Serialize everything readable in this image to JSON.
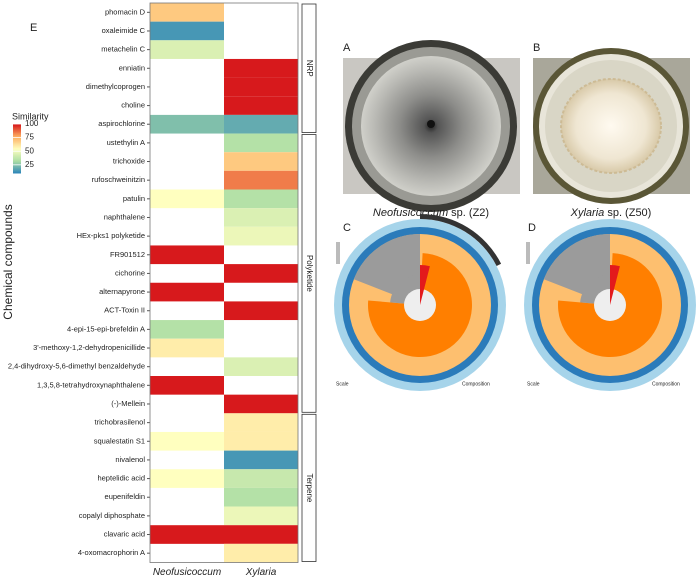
{
  "panel_labels": {
    "a": "A",
    "b": "B",
    "c": "C",
    "d": "D",
    "e": "E"
  },
  "photo_captions": {
    "a": {
      "genus": "Neofusicoccum",
      "rest": "sp. (Z2)"
    },
    "b": {
      "genus": "Xylaria",
      "rest": "sp. (Z50)"
    }
  },
  "snail_legend": {
    "scale": "Scale",
    "composition": "Composition"
  },
  "chart_data": {
    "type": "heatmap",
    "ylabel": "Chemical compounds",
    "categories": [
      "phomacin D",
      "oxaleimide C",
      "metachelin C",
      "enniatin",
      "dimethylcoprogen",
      "choline",
      "aspirochlorine",
      "ustethylin A",
      "trichoxide",
      "rufoschweinitzin",
      "patulin",
      "naphthalene",
      "HEx-pks1 polyketide",
      "FR901512",
      "cichorine",
      "alternapyrone",
      "ACT-Toxin II",
      "4-epi-15-epi-brefeldin A",
      "3'-methoxy-1,2-dehydropenicillide",
      "2,4-dihydroxy-5,6-dimethyl benzaldehyde",
      "1,3,5,8-tetrahydroxynaphthalene",
      "(-)-Mellein",
      "trichobrasilenol",
      "squalestatin S1",
      "nivalenol",
      "heptelidic acid",
      "eupenifeldin",
      "copalyl diphosphate",
      "clavaric acid",
      "4-oxomacrophorin A"
    ],
    "group": [
      "NRP",
      "NRP",
      "NRP",
      "NRP",
      "NRP",
      "NRP",
      "NRP",
      "Polyketide",
      "Polyketide",
      "Polyketide",
      "Polyketide",
      "Polyketide",
      "Polyketide",
      "Polyketide",
      "Polyketide",
      "Polyketide",
      "Polyketide",
      "Polyketide",
      "Polyketide",
      "Polyketide",
      "Polyketide",
      "Polyketide",
      "Terpene",
      "Terpene",
      "Terpene",
      "Terpene",
      "Terpene",
      "Terpene",
      "Terpene",
      "Terpene"
    ],
    "series": [
      {
        "name": "Neofusicoccum",
        "values": [
          70,
          15,
          45,
          null,
          null,
          null,
          25,
          null,
          null,
          null,
          55,
          null,
          null,
          100,
          null,
          100,
          null,
          35,
          60,
          null,
          100,
          null,
          null,
          55,
          null,
          55,
          null,
          null,
          100,
          null
        ]
      },
      {
        "name": "Xylaria",
        "values": [
          null,
          null,
          null,
          100,
          100,
          100,
          20,
          35,
          70,
          85,
          35,
          45,
          50,
          null,
          100,
          null,
          100,
          null,
          null,
          45,
          null,
          100,
          60,
          60,
          15,
          40,
          35,
          50,
          100,
          60
        ]
      }
    ],
    "colorbar": {
      "title": "Similarity",
      "lim": [
        10,
        100
      ],
      "ticks": [
        25,
        50,
        75,
        100
      ],
      "colors": [
        "#2b83ba",
        "#abdda4",
        "#ffffbf",
        "#fdae61",
        "#d7191c"
      ]
    }
  }
}
